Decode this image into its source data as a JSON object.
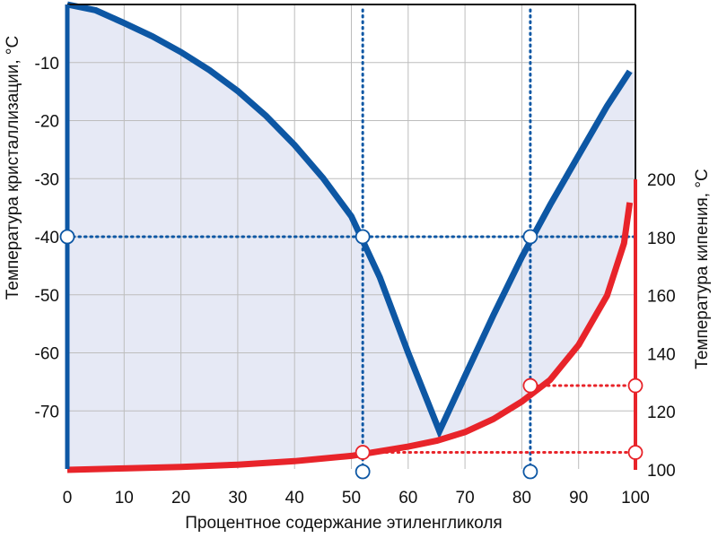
{
  "chart_data": {
    "type": "line",
    "xlabel": "Процентное содержание этиленгликоля",
    "ylabel_left": "Температура кристаллизации, °C",
    "ylabel_right": "Температура кипения, °C",
    "xlim": [
      0,
      100
    ],
    "ylim_left": [
      -80,
      0
    ],
    "ylim_right": [
      100,
      200
    ],
    "x_ticks": [
      "0",
      "10",
      "20",
      "30",
      "40",
      "50",
      "60",
      "70",
      "80",
      "90",
      "100"
    ],
    "y_left_ticks": [
      "-10",
      "-20",
      "-30",
      "-40",
      "-50",
      "-60",
      "-70"
    ],
    "y_right_ticks": [
      "200",
      "180",
      "160",
      "140",
      "120",
      "100"
    ],
    "grid": true,
    "colors": {
      "crystallization": "#0d57a4",
      "boiling": "#e8242a",
      "fill": "#e6e9f5",
      "grid": "#bdbdbd"
    },
    "series": [
      {
        "axis": "left",
        "x": [
          0,
          5,
          10,
          15,
          20,
          25,
          30,
          35,
          40,
          45,
          50,
          55,
          60,
          65.5,
          70,
          75,
          80,
          85,
          90,
          95,
          99
        ],
        "values": [
          0,
          -1,
          -3.2,
          -5.5,
          -8.2,
          -11.3,
          -14.9,
          -19.2,
          -24.2,
          -29.9,
          -36.5,
          -47,
          -60,
          -73.5,
          -64,
          -53.5,
          -43.5,
          -34.5,
          -26,
          -17.5,
          -11.5
        ]
      },
      {
        "axis": "right",
        "x": [
          0,
          10,
          20,
          30,
          40,
          50,
          60,
          65,
          70,
          75,
          80,
          85,
          90,
          95,
          98,
          99
        ],
        "values": [
          100,
          100.5,
          101,
          101.8,
          103,
          104.8,
          108,
          110,
          113,
          117.5,
          123.5,
          131,
          143,
          160,
          178,
          192
        ]
      }
    ],
    "annotations": [
      {
        "x": 52,
        "y_left": -40,
        "y_right": 106
      },
      {
        "x": 81.5,
        "y_left": -40,
        "y_right": 129
      }
    ]
  }
}
